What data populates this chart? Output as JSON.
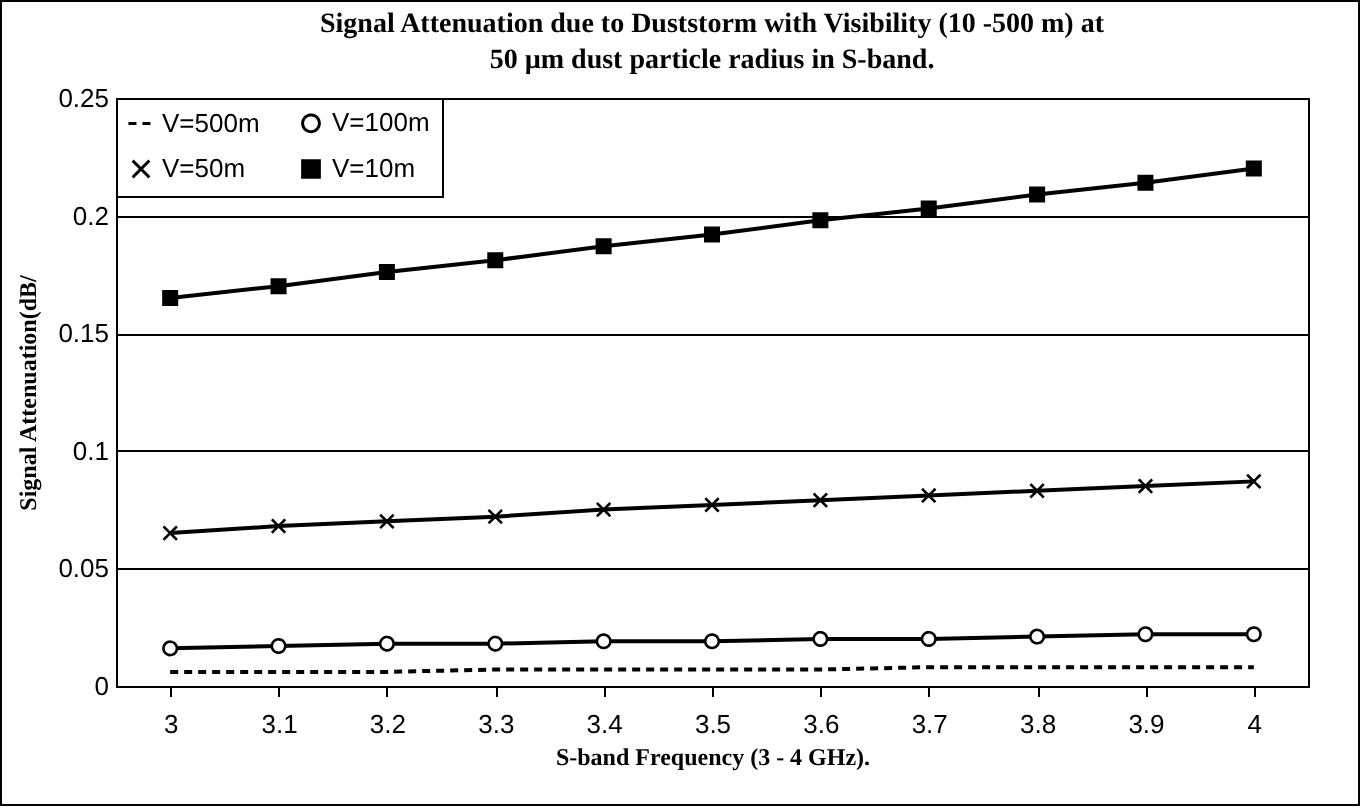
{
  "chart_data": {
    "type": "line",
    "title": "Signal Attenuation due to Duststorm with Visibility (10 -500 m) at 50 µm dust particle radius in S-band.",
    "xlabel": "S-band Frequency (3 - 4 GHz).",
    "ylabel": "Signal Attenuation(dB/",
    "categories": [
      "3",
      "3.1",
      "3.2",
      "3.3",
      "3.4",
      "3.5",
      "3.6",
      "3.7",
      "3.8",
      "3.9",
      "4"
    ],
    "series": [
      {
        "name": "V=500m",
        "color": "#000000",
        "marker": "none",
        "line_style": "dashed",
        "values": [
          0.006,
          0.006,
          0.006,
          0.007,
          0.007,
          0.007,
          0.007,
          0.008,
          0.008,
          0.008,
          0.008
        ]
      },
      {
        "name": "V=100m",
        "color": "#000000",
        "marker": "circle",
        "line_style": "solid",
        "values": [
          0.016,
          0.017,
          0.018,
          0.018,
          0.019,
          0.019,
          0.02,
          0.02,
          0.021,
          0.022,
          0.022
        ]
      },
      {
        "name": "V=50m",
        "color": "#000000",
        "marker": "cross",
        "line_style": "solid",
        "values": [
          0.065,
          0.068,
          0.07,
          0.072,
          0.075,
          0.077,
          0.079,
          0.081,
          0.083,
          0.085,
          0.087
        ]
      },
      {
        "name": "V=10m",
        "color": "#000000",
        "marker": "square",
        "line_style": "solid",
        "values": [
          0.165,
          0.17,
          0.176,
          0.181,
          0.187,
          0.192,
          0.198,
          0.203,
          0.209,
          0.214,
          0.22
        ]
      }
    ],
    "ylim": [
      0,
      0.25
    ],
    "yticks": [
      0,
      0.05,
      0.1,
      0.15,
      0.2,
      0.25
    ],
    "grid": "y",
    "legend": "top left"
  }
}
